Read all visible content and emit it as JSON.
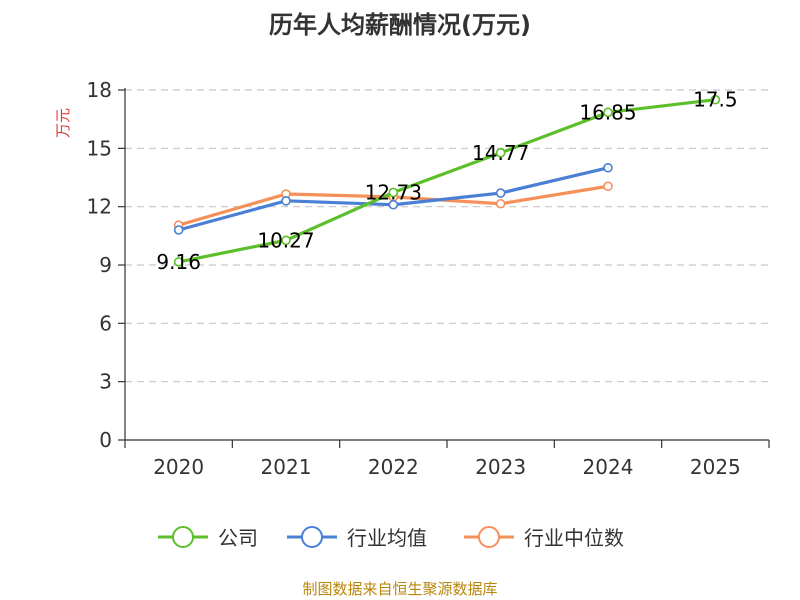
{
  "chart_data": {
    "type": "line",
    "title": "历年人均薪酬情况(万元)",
    "ylabel": "万元",
    "xlabel": "",
    "categories": [
      "2020",
      "2021",
      "2022",
      "2023",
      "2024",
      "2025"
    ],
    "ylim": [
      0,
      18
    ],
    "yticks": [
      0,
      3,
      6,
      9,
      12,
      15,
      18
    ],
    "grid": true,
    "legend_position": "bottom",
    "series": [
      {
        "name": "公司",
        "color": "#5cbf2a",
        "values": [
          9.16,
          10.27,
          12.73,
          14.77,
          16.85,
          17.5
        ],
        "labels": [
          "9.16",
          "10.27",
          "12.73",
          "14.77",
          "16.85",
          "17.5"
        ]
      },
      {
        "name": "行业均值",
        "color": "#4a7fd6",
        "values": [
          10.8,
          12.3,
          12.1,
          12.7,
          14.0,
          null
        ]
      },
      {
        "name": "行业中位数",
        "color": "#f5905a",
        "values": [
          11.05,
          12.65,
          12.5,
          12.15,
          13.05,
          null
        ]
      }
    ]
  },
  "footer": {
    "source": "制图数据来自恒生聚源数据库"
  }
}
